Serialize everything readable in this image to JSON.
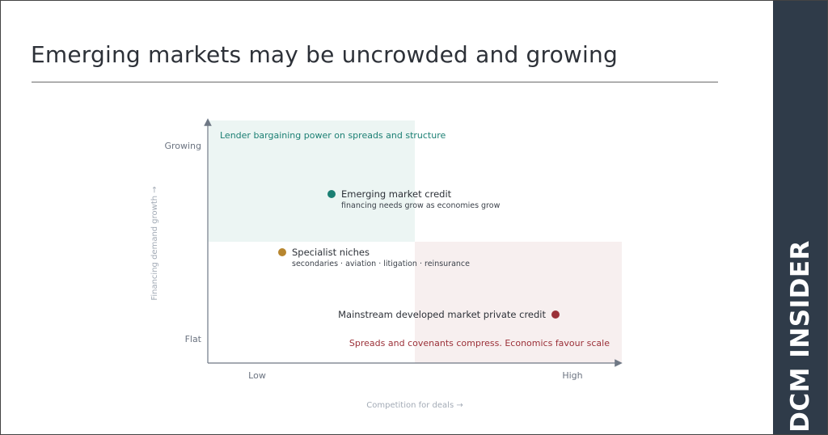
{
  "title": "Emerging markets may be uncrowded and growing",
  "brand": "DCM INSIDER",
  "colors": {
    "accent_teal": "#1b7f73",
    "accent_red": "#9b3038",
    "accent_gold": "#b7862f",
    "zone_teal_fill": "#ecf5f3",
    "zone_red_fill": "#f7efef",
    "sidebar": "#2f3b49"
  },
  "matrix": {
    "x_axis_label": "Competition for deals →",
    "y_axis_label": "Financing demand growth →",
    "x_ticks": {
      "low": "Low",
      "high": "High"
    },
    "y_ticks": {
      "top": "Growing",
      "bottom": "Flat"
    },
    "zones": {
      "top_left": "Lender bargaining power on spreads and structure",
      "bottom_right": "Spreads and covenants compress. Economics favour scale"
    },
    "points": [
      {
        "label": "Emerging market credit",
        "sublabel": "financing needs grow as economies grow",
        "color": "#1b7f73"
      },
      {
        "label": "Specialist niches",
        "sublabel": "secondaries · aviation · litigation · reinsurance",
        "color": "#b7862f"
      },
      {
        "label": "Mainstream developed market private credit",
        "sublabel": "",
        "color": "#9b3038"
      }
    ]
  }
}
